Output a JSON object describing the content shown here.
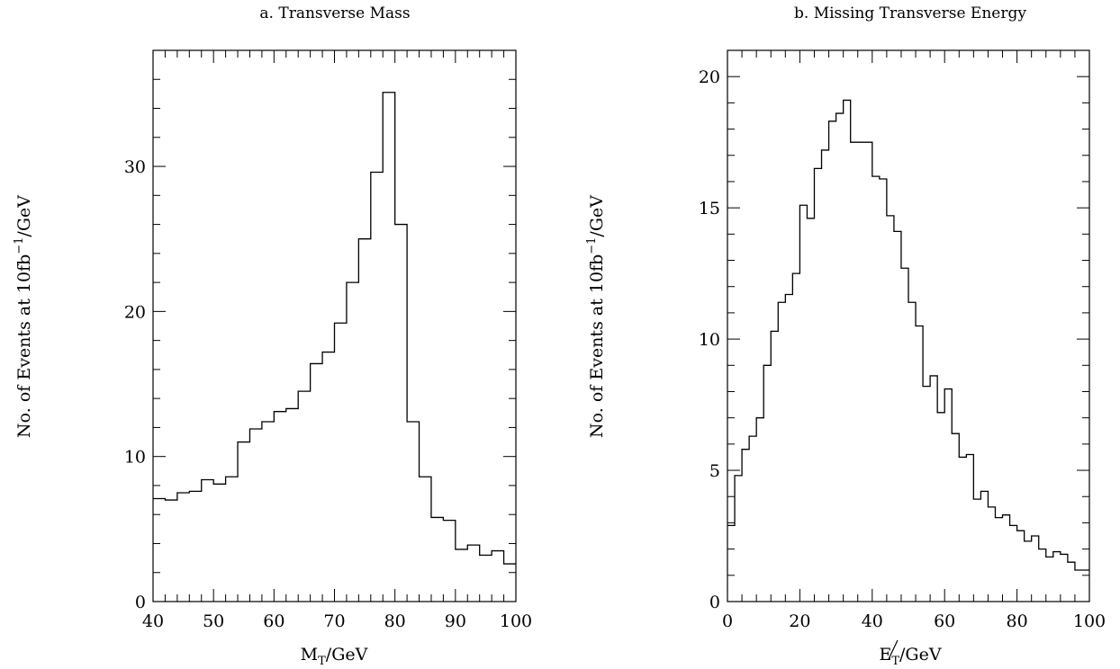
{
  "chart_data": [
    {
      "type": "histogram",
      "title": "a. Transverse Mass",
      "xlabel_main": "M",
      "xlabel_sub": "T",
      "xlabel_tail": "/GeV",
      "ylabel_head": "No. of Events at 10fb",
      "ylabel_sup": "−1",
      "ylabel_tail": "/GeV",
      "xlim": [
        40,
        100
      ],
      "ylim": [
        0,
        38
      ],
      "xticks": [
        40,
        50,
        60,
        70,
        80,
        90,
        100
      ],
      "yticks": [
        0,
        10,
        20,
        30
      ],
      "x_minor_step": 2,
      "y_minor_step": 2,
      "bin_width": 2,
      "bin_start": 40,
      "values": [
        7.1,
        7.0,
        7.5,
        7.6,
        8.4,
        8.1,
        8.6,
        11.0,
        11.9,
        12.4,
        13.1,
        13.3,
        14.5,
        16.4,
        17.2,
        19.2,
        22.0,
        25.0,
        29.6,
        35.1,
        26.0,
        12.4,
        8.6,
        5.8,
        5.6,
        3.6,
        3.9,
        3.2,
        3.5,
        2.6
      ]
    },
    {
      "type": "histogram",
      "title": "b. Missing Transverse Energy",
      "xlabel_main": "E",
      "xlabel_sub": "T",
      "xlabel_tail": "/GeV",
      "ylabel_head": "No. of Events at 10fb",
      "ylabel_sup": "−1",
      "ylabel_tail": "/GeV",
      "xlim": [
        0,
        100
      ],
      "ylim": [
        0,
        21
      ],
      "xticks": [
        0,
        20,
        40,
        60,
        80,
        100
      ],
      "yticks": [
        0,
        5,
        10,
        15,
        20
      ],
      "x_minor_step": 4,
      "y_minor_step": 1,
      "bin_width": 2,
      "bin_start": 0,
      "values": [
        2.9,
        4.8,
        5.8,
        6.3,
        7.0,
        9.0,
        10.3,
        11.4,
        11.7,
        12.5,
        15.1,
        14.6,
        16.5,
        17.2,
        18.3,
        18.6,
        19.1,
        17.5,
        17.5,
        17.5,
        16.2,
        16.1,
        14.7,
        14.1,
        12.7,
        11.4,
        10.5,
        8.2,
        8.6,
        7.2,
        8.1,
        6.4,
        5.5,
        5.6,
        3.9,
        4.2,
        3.6,
        3.2,
        3.3,
        2.9,
        2.7,
        2.3,
        2.5,
        2.0,
        1.7,
        1.9,
        1.8,
        1.5,
        1.2,
        1.2
      ]
    }
  ]
}
